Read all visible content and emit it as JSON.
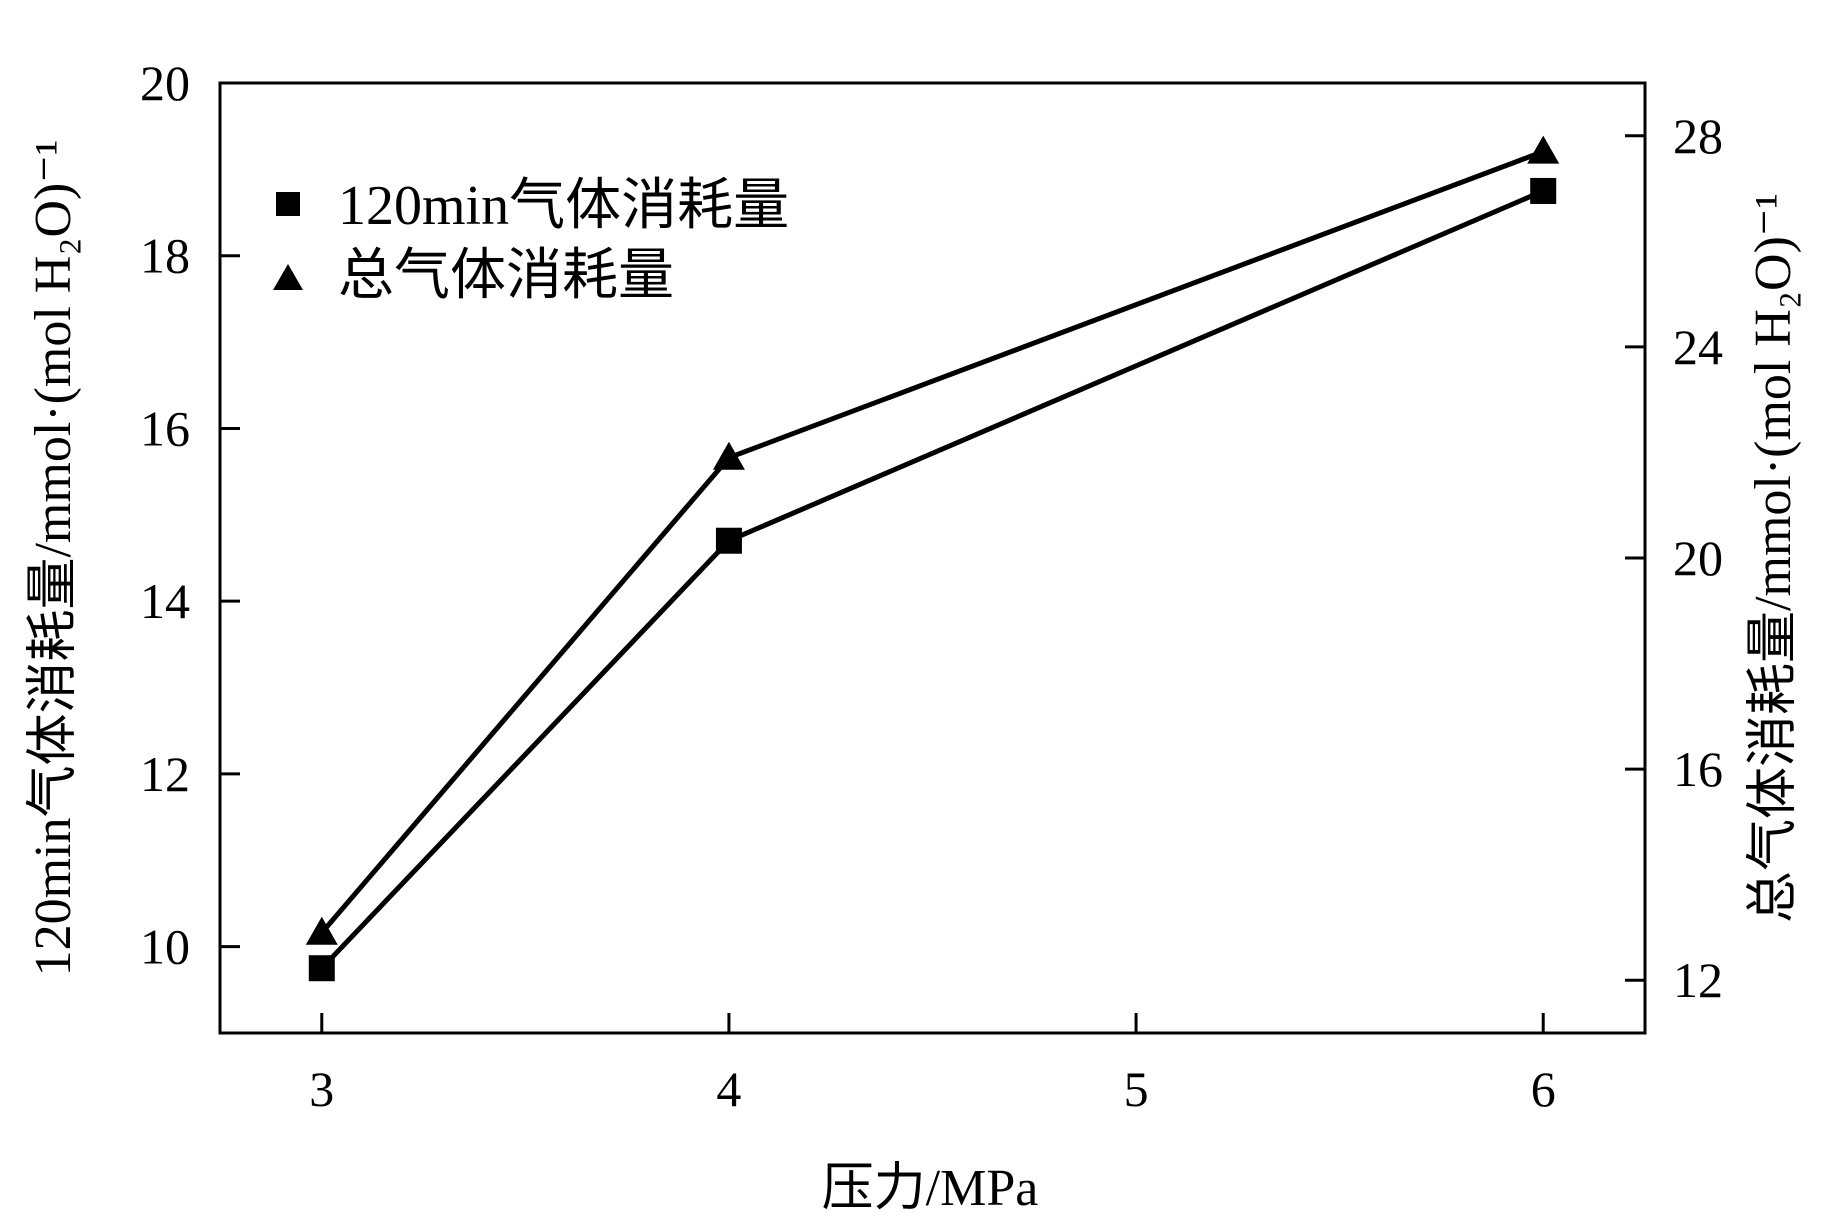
{
  "chart_data": {
    "type": "line",
    "x": [
      3,
      4,
      6
    ],
    "xlabel": "压力/MPa",
    "xlim": [
      2.75,
      6.25
    ],
    "xticks": [
      "3",
      "4",
      "5",
      "6"
    ],
    "ylabel_left": "120min气体消耗量/mmol·(mol H₂O)⁻¹",
    "ylim_left": [
      9,
      20
    ],
    "yticks_left": [
      "10",
      "12",
      "14",
      "16",
      "18",
      "20"
    ],
    "ylabel_right": "总气体消耗量/mmol·(mol H₂O)⁻¹",
    "ylim_right": [
      11,
      29
    ],
    "yticks_right": [
      "12",
      "16",
      "20",
      "24",
      "28"
    ],
    "series": [
      {
        "name": "120min气体消耗量",
        "axis": "left",
        "marker": "square",
        "values": [
          9.75,
          14.7,
          18.75
        ]
      },
      {
        "name": "总气体消耗量",
        "axis": "right",
        "marker": "triangle",
        "values": [
          12.9,
          21.9,
          27.7
        ]
      }
    ],
    "legend": "top-left",
    "grid": false,
    "color": "#000000"
  }
}
